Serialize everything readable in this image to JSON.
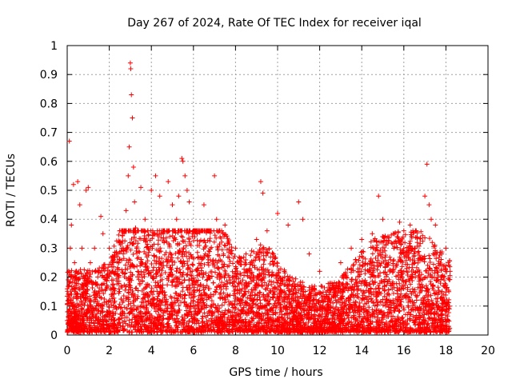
{
  "chart_data": {
    "type": "scatter",
    "title": "Day 267 of 2024, Rate Of TEC Index for receiver iqal",
    "xlabel": "GPS time / hours",
    "ylabel": "ROTI / TECUs",
    "xlim": [
      0,
      20
    ],
    "ylim": [
      0,
      1
    ],
    "xticks": [
      0,
      2,
      4,
      6,
      8,
      10,
      12,
      14,
      16,
      18,
      20
    ],
    "yticks": [
      0,
      0.1,
      0.2,
      0.3,
      0.4,
      0.5,
      0.6,
      0.7,
      0.8,
      0.9,
      1
    ],
    "xtick_labels": [
      "0",
      "2",
      "4",
      "6",
      "8",
      "10",
      "12",
      "14",
      "16",
      "18",
      "20"
    ],
    "ytick_labels": [
      "0",
      "0.1",
      "0.2",
      "0.3",
      "0.4",
      "0.5",
      "0.6",
      "0.7",
      "0.8",
      "0.9",
      "1"
    ],
    "grid": true,
    "marker": "+",
    "series_color": "#ff0000",
    "x_extent": [
      0,
      18.2
    ],
    "series": [
      {
        "x": [
          0.0,
          0.1,
          0.15,
          0.2,
          0.3,
          0.35,
          0.4,
          0.5,
          0.6,
          0.7,
          0.75,
          0.9,
          1.0,
          1.1,
          1.3,
          1.6,
          1.7,
          2.0,
          2.2,
          2.5,
          2.6,
          2.8,
          2.9,
          2.95,
          3.0,
          3.02,
          3.05,
          3.1,
          3.15,
          3.2,
          3.25,
          3.3,
          3.5,
          3.7,
          4.0,
          4.2,
          4.4,
          4.6,
          4.8,
          5.0,
          5.2,
          5.3,
          5.45,
          5.5,
          5.6,
          5.7,
          5.8,
          6.0,
          6.5,
          7.0,
          7.1,
          7.4,
          7.5,
          8.0,
          8.5,
          9.0,
          9.2,
          9.3,
          9.5,
          9.8,
          10.0,
          10.5,
          11.0,
          11.2,
          11.5,
          12.0,
          12.5,
          13.0,
          13.5,
          14.0,
          14.5,
          14.8,
          15.0,
          15.5,
          15.8,
          16.0,
          16.3,
          16.5,
          17.0,
          17.1,
          17.2,
          17.3,
          17.5,
          17.8,
          18.0,
          18.2
        ],
        "y": [
          0.05,
          0.67,
          0.3,
          0.38,
          0.52,
          0.25,
          0.2,
          0.53,
          0.45,
          0.3,
          0.2,
          0.5,
          0.51,
          0.25,
          0.3,
          0.41,
          0.35,
          0.3,
          0.25,
          0.36,
          0.3,
          0.43,
          0.55,
          0.65,
          0.94,
          0.92,
          0.83,
          0.75,
          0.58,
          0.46,
          0.37,
          0.3,
          0.51,
          0.4,
          0.5,
          0.55,
          0.48,
          0.36,
          0.53,
          0.45,
          0.4,
          0.48,
          0.61,
          0.6,
          0.55,
          0.5,
          0.46,
          0.35,
          0.45,
          0.55,
          0.4,
          0.35,
          0.38,
          0.3,
          0.28,
          0.33,
          0.53,
          0.49,
          0.36,
          0.28,
          0.42,
          0.38,
          0.46,
          0.4,
          0.28,
          0.22,
          0.18,
          0.25,
          0.3,
          0.33,
          0.35,
          0.48,
          0.4,
          0.35,
          0.39,
          0.36,
          0.38,
          0.3,
          0.48,
          0.59,
          0.45,
          0.4,
          0.38,
          0.28,
          0.3,
          0.22
        ]
      }
    ]
  }
}
